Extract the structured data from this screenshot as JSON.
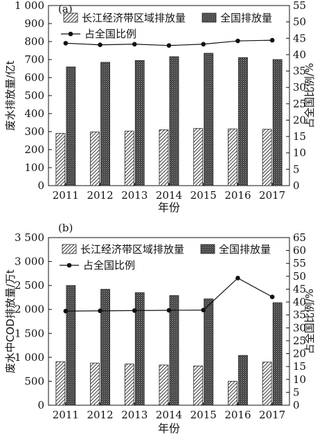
{
  "chart_data": [
    {
      "type": "bar",
      "panel_label": "(a)",
      "categories": [
        "2011",
        "2012",
        "2013",
        "2014",
        "2015",
        "2016",
        "2017"
      ],
      "xlabel": "年份",
      "ylabel": "废水排放量/亿t",
      "y2label": "占全国比例/%",
      "ylim": [
        0,
        1000
      ],
      "y_ticks": [
        0,
        100,
        200,
        300,
        400,
        500,
        600,
        700,
        800,
        900,
        1000
      ],
      "y_tick_labels": [
        "0",
        "100",
        "200",
        "300",
        "400",
        "500",
        "600",
        "700",
        "800",
        "900",
        "1 000"
      ],
      "y2lim": [
        0,
        55
      ],
      "y2_ticks": [
        0,
        5,
        10,
        15,
        20,
        25,
        30,
        35,
        40,
        45,
        50,
        55
      ],
      "legend_placement": "top",
      "series": [
        {
          "name": "长江经济带区域排放量",
          "kind": "bar",
          "pattern": "hatch",
          "axis": "left",
          "values": [
            290,
            298,
            303,
            310,
            318,
            315,
            313
          ]
        },
        {
          "name": "全国排放量",
          "kind": "bar",
          "pattern": "dots",
          "axis": "left",
          "values": [
            659,
            685,
            695,
            716,
            735,
            711,
            700
          ]
        },
        {
          "name": "占全国比例",
          "kind": "line",
          "axis": "right",
          "values": [
            43.5,
            43.0,
            43.2,
            42.8,
            43.2,
            44.2,
            44.4
          ]
        }
      ]
    },
    {
      "type": "bar",
      "panel_label": "(b)",
      "categories": [
        "2011",
        "2012",
        "2013",
        "2014",
        "2015",
        "2016",
        "2017"
      ],
      "xlabel": "年份",
      "ylabel": "废水中COD排放量/万t",
      "y2label": "占全国比例/%",
      "ylim": [
        0,
        3500
      ],
      "y_ticks": [
        0,
        500,
        1000,
        1500,
        2000,
        2500,
        3000,
        3500
      ],
      "y_tick_labels": [
        "0",
        "500",
        "1 000",
        "1 500",
        "2 000",
        "2 500",
        "3 000",
        "3 500"
      ],
      "y2lim": [
        0,
        65
      ],
      "y2_ticks": [
        0,
        5,
        10,
        15,
        20,
        25,
        30,
        35,
        40,
        45,
        50,
        55,
        60,
        65
      ],
      "legend_placement": "top-right",
      "series": [
        {
          "name": "长江经济带区域排放量",
          "kind": "bar",
          "pattern": "hatch",
          "axis": "left",
          "values": [
            910,
            880,
            860,
            840,
            820,
            500,
            900
          ]
        },
        {
          "name": "全国排放量",
          "kind": "bar",
          "pattern": "dots",
          "axis": "left",
          "values": [
            2500,
            2420,
            2350,
            2290,
            2220,
            1040,
            2140
          ]
        },
        {
          "name": "占全国比例",
          "kind": "line",
          "axis": "right",
          "values": [
            36.5,
            36.6,
            36.7,
            36.8,
            36.9,
            49.3,
            42.0
          ]
        }
      ]
    }
  ]
}
